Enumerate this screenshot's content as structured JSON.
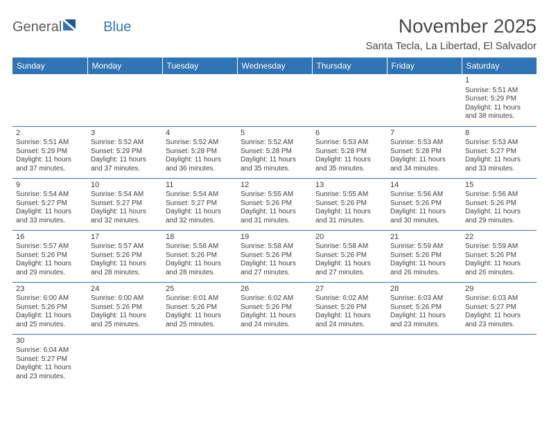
{
  "logo": {
    "text1": "General",
    "text2": "Blue"
  },
  "title": "November 2025",
  "subtitle": "Santa Tecla, La Libertad, El Salvador",
  "colors": {
    "header_bg": "#2f74b5",
    "header_text": "#ffffff",
    "border": "#2f74b5",
    "body_text": "#404040",
    "title_text": "#494949",
    "logo_gray": "#5a5a5a",
    "logo_blue": "#2f74b5",
    "background": "#ffffff"
  },
  "weekdays": [
    "Sunday",
    "Monday",
    "Tuesday",
    "Wednesday",
    "Thursday",
    "Friday",
    "Saturday"
  ],
  "weeks": [
    [
      null,
      null,
      null,
      null,
      null,
      null,
      {
        "n": "1",
        "sr": "Sunrise: 5:51 AM",
        "ss": "Sunset: 5:29 PM",
        "dl": "Daylight: 11 hours and 38 minutes."
      }
    ],
    [
      {
        "n": "2",
        "sr": "Sunrise: 5:51 AM",
        "ss": "Sunset: 5:29 PM",
        "dl": "Daylight: 11 hours and 37 minutes."
      },
      {
        "n": "3",
        "sr": "Sunrise: 5:52 AM",
        "ss": "Sunset: 5:29 PM",
        "dl": "Daylight: 11 hours and 37 minutes."
      },
      {
        "n": "4",
        "sr": "Sunrise: 5:52 AM",
        "ss": "Sunset: 5:28 PM",
        "dl": "Daylight: 11 hours and 36 minutes."
      },
      {
        "n": "5",
        "sr": "Sunrise: 5:52 AM",
        "ss": "Sunset: 5:28 PM",
        "dl": "Daylight: 11 hours and 35 minutes."
      },
      {
        "n": "6",
        "sr": "Sunrise: 5:53 AM",
        "ss": "Sunset: 5:28 PM",
        "dl": "Daylight: 11 hours and 35 minutes."
      },
      {
        "n": "7",
        "sr": "Sunrise: 5:53 AM",
        "ss": "Sunset: 5:28 PM",
        "dl": "Daylight: 11 hours and 34 minutes."
      },
      {
        "n": "8",
        "sr": "Sunrise: 5:53 AM",
        "ss": "Sunset: 5:27 PM",
        "dl": "Daylight: 11 hours and 33 minutes."
      }
    ],
    [
      {
        "n": "9",
        "sr": "Sunrise: 5:54 AM",
        "ss": "Sunset: 5:27 PM",
        "dl": "Daylight: 11 hours and 33 minutes."
      },
      {
        "n": "10",
        "sr": "Sunrise: 5:54 AM",
        "ss": "Sunset: 5:27 PM",
        "dl": "Daylight: 11 hours and 32 minutes."
      },
      {
        "n": "11",
        "sr": "Sunrise: 5:54 AM",
        "ss": "Sunset: 5:27 PM",
        "dl": "Daylight: 11 hours and 32 minutes."
      },
      {
        "n": "12",
        "sr": "Sunrise: 5:55 AM",
        "ss": "Sunset: 5:26 PM",
        "dl": "Daylight: 11 hours and 31 minutes."
      },
      {
        "n": "13",
        "sr": "Sunrise: 5:55 AM",
        "ss": "Sunset: 5:26 PM",
        "dl": "Daylight: 11 hours and 31 minutes."
      },
      {
        "n": "14",
        "sr": "Sunrise: 5:56 AM",
        "ss": "Sunset: 5:26 PM",
        "dl": "Daylight: 11 hours and 30 minutes."
      },
      {
        "n": "15",
        "sr": "Sunrise: 5:56 AM",
        "ss": "Sunset: 5:26 PM",
        "dl": "Daylight: 11 hours and 29 minutes."
      }
    ],
    [
      {
        "n": "16",
        "sr": "Sunrise: 5:57 AM",
        "ss": "Sunset: 5:26 PM",
        "dl": "Daylight: 11 hours and 29 minutes."
      },
      {
        "n": "17",
        "sr": "Sunrise: 5:57 AM",
        "ss": "Sunset: 5:26 PM",
        "dl": "Daylight: 11 hours and 28 minutes."
      },
      {
        "n": "18",
        "sr": "Sunrise: 5:58 AM",
        "ss": "Sunset: 5:26 PM",
        "dl": "Daylight: 11 hours and 28 minutes."
      },
      {
        "n": "19",
        "sr": "Sunrise: 5:58 AM",
        "ss": "Sunset: 5:26 PM",
        "dl": "Daylight: 11 hours and 27 minutes."
      },
      {
        "n": "20",
        "sr": "Sunrise: 5:58 AM",
        "ss": "Sunset: 5:26 PM",
        "dl": "Daylight: 11 hours and 27 minutes."
      },
      {
        "n": "21",
        "sr": "Sunrise: 5:59 AM",
        "ss": "Sunset: 5:26 PM",
        "dl": "Daylight: 11 hours and 26 minutes."
      },
      {
        "n": "22",
        "sr": "Sunrise: 5:59 AM",
        "ss": "Sunset: 5:26 PM",
        "dl": "Daylight: 11 hours and 26 minutes."
      }
    ],
    [
      {
        "n": "23",
        "sr": "Sunrise: 6:00 AM",
        "ss": "Sunset: 5:26 PM",
        "dl": "Daylight: 11 hours and 25 minutes."
      },
      {
        "n": "24",
        "sr": "Sunrise: 6:00 AM",
        "ss": "Sunset: 5:26 PM",
        "dl": "Daylight: 11 hours and 25 minutes."
      },
      {
        "n": "25",
        "sr": "Sunrise: 6:01 AM",
        "ss": "Sunset: 5:26 PM",
        "dl": "Daylight: 11 hours and 25 minutes."
      },
      {
        "n": "26",
        "sr": "Sunrise: 6:02 AM",
        "ss": "Sunset: 5:26 PM",
        "dl": "Daylight: 11 hours and 24 minutes."
      },
      {
        "n": "27",
        "sr": "Sunrise: 6:02 AM",
        "ss": "Sunset: 5:26 PM",
        "dl": "Daylight: 11 hours and 24 minutes."
      },
      {
        "n": "28",
        "sr": "Sunrise: 6:03 AM",
        "ss": "Sunset: 5:26 PM",
        "dl": "Daylight: 11 hours and 23 minutes."
      },
      {
        "n": "29",
        "sr": "Sunrise: 6:03 AM",
        "ss": "Sunset: 5:27 PM",
        "dl": "Daylight: 11 hours and 23 minutes."
      }
    ],
    [
      {
        "n": "30",
        "sr": "Sunrise: 6:04 AM",
        "ss": "Sunset: 5:27 PM",
        "dl": "Daylight: 11 hours and 23 minutes."
      },
      null,
      null,
      null,
      null,
      null,
      null
    ]
  ]
}
